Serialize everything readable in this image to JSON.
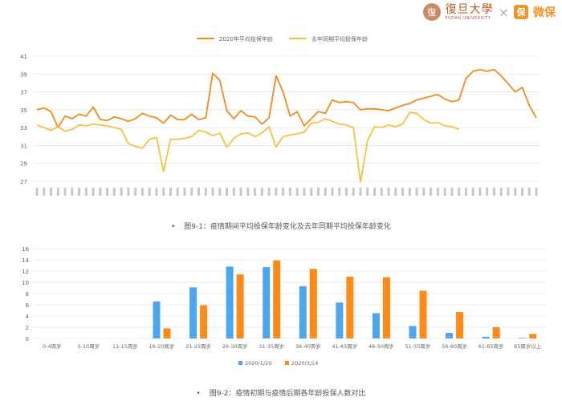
{
  "logos": {
    "university_cn": "復旦大學",
    "university_en": "FUDAN UNIVERSITY",
    "cross": "×",
    "partner_mark": "保",
    "partner_name": "微保"
  },
  "chart_data": [
    {
      "type": "line",
      "series": [
        {
          "name": "2020年平均投保年龄",
          "color": "#f28c1c",
          "values": [
            35.0,
            35.2,
            34.8,
            33.0,
            34.3,
            34.0,
            34.5,
            34.3,
            35.3,
            33.9,
            33.8,
            34.2,
            34.0,
            33.7,
            34.0,
            34.6,
            34.3,
            34.1,
            33.5,
            34.4,
            33.9,
            33.9,
            34.5,
            33.9,
            34.1,
            39.1,
            38.3,
            34.9,
            34.0,
            34.9,
            34.3,
            34.2,
            33.4,
            34.1,
            38.8,
            37.0,
            34.3,
            34.8,
            33.2,
            34.0,
            34.8,
            34.6,
            36.1,
            35.8,
            35.9,
            35.8,
            35.0,
            35.1,
            35.1,
            35.0,
            34.9,
            35.2,
            35.5,
            35.7,
            36.1,
            36.3,
            36.5,
            36.7,
            36.2,
            35.9,
            36.1,
            38.5,
            39.3,
            39.5,
            39.3,
            39.5,
            38.8,
            37.9,
            37.0,
            37.5,
            35.5,
            34.1
          ]
        },
        {
          "name": "去年同期平均投保年龄",
          "color": "#f7c244",
          "values": [
            33.3,
            33.0,
            32.7,
            33.1,
            32.6,
            32.8,
            33.3,
            33.2,
            33.4,
            33.3,
            33.2,
            33.0,
            32.8,
            31.2,
            30.9,
            30.7,
            31.7,
            31.9,
            28.1,
            31.7,
            31.7,
            31.8,
            32.0,
            32.7,
            32.5,
            32.1,
            32.4,
            30.8,
            31.8,
            32.3,
            32.4,
            32.0,
            32.4,
            33.1,
            30.8,
            32.0,
            32.2,
            32.3,
            32.5,
            33.5,
            33.6,
            34.0,
            33.7,
            33.4,
            33.3,
            33.0,
            26.9,
            31.5,
            33.1,
            33.0,
            33.3,
            33.1,
            33.4,
            34.7,
            34.6,
            33.9,
            33.5,
            33.6,
            33.2,
            33.1,
            32.8
          ]
        }
      ],
      "ylim": [
        27,
        41
      ],
      "yticks": [
        27,
        29,
        31,
        33,
        35,
        37,
        39,
        41
      ],
      "grid": true,
      "legend_position": "top-center",
      "caption_bullet": "•",
      "caption": "图9-1：疫情期间平均投保年龄变化及去年同期平均投保年龄变化"
    },
    {
      "type": "bar",
      "categories": [
        "0-4周岁",
        "5-10周岁",
        "11-15周岁",
        "16-20周岁",
        "21-25周岁",
        "26-30周岁",
        "31-35周岁",
        "36-40周岁",
        "41-45周岁",
        "46-50周岁",
        "51-55周岁",
        "56-60周岁",
        "61-65周岁",
        "65周岁以上"
      ],
      "series": [
        {
          "name": "2020/1/20",
          "color": "#4ea6f0",
          "values": [
            0,
            0,
            0,
            6.6,
            9.1,
            12.8,
            12.7,
            9.3,
            6.4,
            4.5,
            2.2,
            1.0,
            0.3,
            0.1
          ]
        },
        {
          "name": "2020/3/14",
          "color": "#ff8a17",
          "values": [
            0,
            0,
            0,
            1.8,
            5.9,
            11.4,
            13.9,
            12.4,
            11.0,
            10.9,
            8.5,
            4.7,
            2.0,
            0.8
          ]
        }
      ],
      "ylim": [
        0,
        16
      ],
      "yticks": [
        0,
        2,
        4,
        6,
        8,
        10,
        12,
        14,
        16
      ],
      "grid": true,
      "legend_position": "bottom-center",
      "caption_bullet": "•",
      "caption": "图9-2：疫情初期与疫情后期各年龄投保人数对比"
    }
  ]
}
